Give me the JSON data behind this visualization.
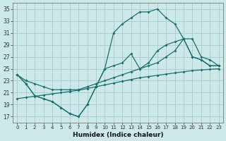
{
  "xlabel": "Humidex (Indice chaleur)",
  "bg_color": "#cce8e8",
  "grid_color": "#aacfcf",
  "line_color": "#1a7070",
  "xlim": [
    -0.5,
    23.5
  ],
  "ylim": [
    16,
    36
  ],
  "yticks": [
    17,
    19,
    21,
    23,
    25,
    27,
    29,
    31,
    33,
    35
  ],
  "xticks": [
    0,
    1,
    2,
    3,
    4,
    5,
    6,
    7,
    8,
    9,
    10,
    11,
    12,
    13,
    14,
    15,
    16,
    17,
    18,
    19,
    20,
    21,
    22,
    23
  ],
  "line1_x": [
    0,
    1,
    2,
    3,
    4,
    5,
    6,
    7,
    8,
    9,
    10,
    11,
    12,
    13,
    14,
    15,
    16,
    17,
    18,
    19,
    20,
    21,
    22,
    23
  ],
  "line1_y": [
    24.0,
    22.5,
    20.5,
    20.0,
    19.5,
    18.5,
    17.5,
    17.0,
    19.0,
    22.0,
    25.0,
    31.0,
    32.5,
    33.5,
    34.5,
    34.5,
    35.0,
    33.5,
    32.5,
    30.0,
    27.0,
    26.5,
    25.5,
    25.5
  ],
  "line2_x": [
    0,
    1,
    2,
    3,
    4,
    5,
    6,
    7,
    8,
    9,
    10,
    11,
    12,
    13,
    14,
    15,
    16,
    17,
    18,
    19,
    20,
    21,
    22,
    23
  ],
  "line2_y": [
    24.0,
    22.5,
    20.5,
    20.0,
    19.5,
    18.5,
    17.5,
    17.0,
    19.0,
    22.0,
    25.0,
    25.5,
    26.0,
    27.5,
    25.0,
    26.0,
    28.0,
    29.0,
    29.5,
    30.0,
    30.0,
    27.0,
    26.5,
    25.5
  ],
  "line3_x": [
    0,
    1,
    2,
    3,
    4,
    5,
    6,
    7,
    8,
    9,
    10,
    11,
    12,
    13,
    14,
    15,
    16,
    17,
    18,
    19,
    20,
    21,
    22,
    23
  ],
  "line3_y": [
    24.0,
    23.0,
    22.5,
    22.0,
    21.5,
    21.5,
    21.5,
    21.5,
    22.0,
    22.5,
    23.0,
    23.5,
    24.0,
    24.5,
    25.0,
    25.5,
    26.0,
    27.0,
    28.0,
    30.0,
    27.0,
    26.5,
    25.5,
    25.5
  ],
  "line4_x": [
    0,
    1,
    2,
    3,
    4,
    5,
    6,
    7,
    8,
    9,
    10,
    11,
    12,
    13,
    14,
    15,
    16,
    17,
    18,
    19,
    20,
    21,
    22,
    23
  ],
  "line4_y": [
    20.0,
    20.2,
    20.4,
    20.6,
    20.8,
    21.0,
    21.2,
    21.4,
    21.7,
    22.0,
    22.3,
    22.6,
    22.9,
    23.2,
    23.5,
    23.7,
    23.9,
    24.1,
    24.3,
    24.5,
    24.7,
    24.8,
    24.9,
    25.0
  ]
}
